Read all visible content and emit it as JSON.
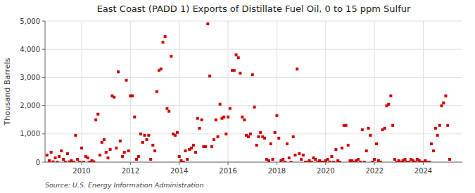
{
  "chart_data": {
    "type": "scatter",
    "title": "East Coast (PADD 1) Exports of Distillate Fuel Oil, 0 to 15 ppm Sulfur",
    "y_label": "Thousand Barrels",
    "annotations": [
      "Source: U.S. Energy Information Administration"
    ],
    "color": "#cc0000",
    "marker": "square",
    "grid": true,
    "xlim": [
      2008.5,
      2025.6
    ],
    "xticks": [
      2010,
      2012,
      2014,
      2016,
      2018,
      2020,
      2022,
      2024
    ],
    "ylim": [
      0,
      5000
    ],
    "yticks": [
      0,
      {
        "value": 1000,
        "label": "1,000"
      },
      {
        "value": 2000,
        "label": "2,000"
      },
      {
        "value": 3000,
        "label": "3,000"
      },
      {
        "value": 4000,
        "label": "4,000"
      },
      {
        "value": 5000,
        "label": "5,000"
      }
    ],
    "x": [
      2008.58,
      2008.67,
      2008.75,
      2008.83,
      2008.92,
      2009.0,
      2009.08,
      2009.17,
      2009.25,
      2009.33,
      2009.42,
      2009.5,
      2009.58,
      2009.67,
      2009.75,
      2009.83,
      2009.92,
      2010.0,
      2010.08,
      2010.17,
      2010.25,
      2010.33,
      2010.42,
      2010.5,
      2010.58,
      2010.67,
      2010.75,
      2010.83,
      2010.92,
      2011.0,
      2011.08,
      2011.17,
      2011.25,
      2011.33,
      2011.42,
      2011.5,
      2011.58,
      2011.67,
      2011.75,
      2011.83,
      2011.92,
      2012.0,
      2012.08,
      2012.17,
      2012.25,
      2012.33,
      2012.42,
      2012.5,
      2012.58,
      2012.67,
      2012.75,
      2012.83,
      2012.92,
      2013.0,
      2013.08,
      2013.17,
      2013.25,
      2013.33,
      2013.42,
      2013.5,
      2013.58,
      2013.67,
      2013.75,
      2013.83,
      2013.92,
      2014.0,
      2014.08,
      2014.17,
      2014.25,
      2014.33,
      2014.42,
      2014.5,
      2014.58,
      2014.67,
      2014.75,
      2014.83,
      2014.92,
      2015.0,
      2015.08,
      2015.17,
      2015.25,
      2015.33,
      2015.42,
      2015.5,
      2015.58,
      2015.67,
      2015.75,
      2015.83,
      2015.92,
      2016.0,
      2016.08,
      2016.17,
      2016.25,
      2016.33,
      2016.42,
      2016.5,
      2016.58,
      2016.67,
      2016.75,
      2016.83,
      2016.92,
      2017.0,
      2017.08,
      2017.17,
      2017.25,
      2017.33,
      2017.42,
      2017.5,
      2017.58,
      2017.67,
      2017.75,
      2017.83,
      2017.92,
      2018.0,
      2018.08,
      2018.17,
      2018.25,
      2018.33,
      2018.42,
      2018.5,
      2018.58,
      2018.67,
      2018.75,
      2018.83,
      2018.92,
      2019.0,
      2019.08,
      2019.17,
      2019.25,
      2019.33,
      2019.42,
      2019.5,
      2019.58,
      2019.67,
      2019.75,
      2019.83,
      2019.92,
      2020.0,
      2020.08,
      2020.17,
      2020.25,
      2020.33,
      2020.42,
      2020.5,
      2020.58,
      2020.67,
      2020.75,
      2020.83,
      2020.92,
      2021.0,
      2021.08,
      2021.17,
      2021.25,
      2021.33,
      2021.42,
      2021.5,
      2021.58,
      2021.67,
      2021.75,
      2021.83,
      2021.92,
      2022.0,
      2022.08,
      2022.17,
      2022.25,
      2022.33,
      2022.42,
      2022.5,
      2022.58,
      2022.67,
      2022.75,
      2022.83,
      2022.92,
      2023.0,
      2023.08,
      2023.17,
      2023.25,
      2023.33,
      2023.42,
      2023.5,
      2023.58,
      2023.67,
      2023.75,
      2023.83,
      2023.92,
      2024.0,
      2024.08,
      2024.17,
      2024.25,
      2024.33,
      2024.42,
      2024.5,
      2024.58,
      2024.67,
      2024.75,
      2024.83,
      2024.92,
      2025.0,
      2025.08
    ],
    "values": [
      250,
      50,
      350,
      10,
      150,
      0,
      200,
      400,
      100,
      0,
      300,
      10,
      50,
      0,
      950,
      100,
      0,
      500,
      0,
      200,
      150,
      0,
      50,
      10,
      1500,
      1700,
      250,
      700,
      800,
      350,
      150,
      450,
      2350,
      2300,
      500,
      3200,
      750,
      200,
      350,
      2900,
      400,
      2350,
      2350,
      1600,
      100,
      200,
      1000,
      700,
      950,
      800,
      950,
      100,
      600,
      400,
      2500,
      3250,
      3300,
      4250,
      4450,
      1900,
      1800,
      3750,
      1000,
      950,
      1050,
      200,
      50,
      0,
      400,
      100,
      450,
      500,
      600,
      350,
      1550,
      1200,
      1500,
      550,
      550,
      4900,
      3050,
      550,
      800,
      1500,
      900,
      2050,
      1550,
      1600,
      1000,
      1600,
      1900,
      3250,
      3250,
      3800,
      3700,
      3150,
      1600,
      1500,
      950,
      900,
      1000,
      3100,
      1950,
      600,
      900,
      1050,
      900,
      850,
      100,
      50,
      650,
      100,
      1050,
      1650,
      850,
      50,
      100,
      0,
      650,
      150,
      0,
      900,
      250,
      3300,
      300,
      100,
      250,
      0,
      0,
      50,
      0,
      150,
      100,
      0,
      50,
      0,
      0,
      50,
      100,
      0,
      200,
      0,
      450,
      50,
      0,
      500,
      1300,
      1300,
      600,
      50,
      50,
      0,
      50,
      100,
      0,
      1150,
      0,
      400,
      1200,
      950,
      0,
      100,
      650,
      50,
      0,
      1150,
      1200,
      2000,
      2050,
      2350,
      1300,
      100,
      0,
      50,
      0,
      50,
      100,
      0,
      0,
      100,
      50,
      0,
      100,
      50,
      0,
      0,
      50,
      0,
      0,
      650,
      400,
      1200,
      950,
      1300,
      2000,
      2100,
      2350,
      1300,
      100
    ]
  }
}
